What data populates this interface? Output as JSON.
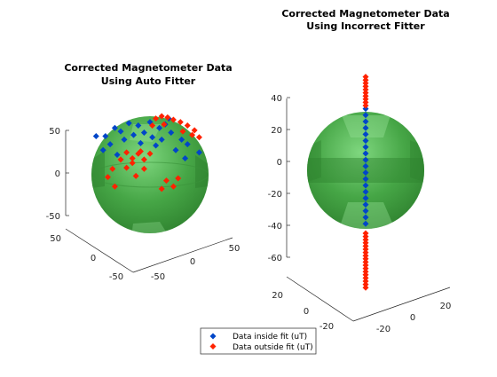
{
  "colors": {
    "sphere_light": "#6fd06f",
    "sphere_mid": "#3e9e3e",
    "sphere_dark": "#2a7a2a",
    "inside": "#0046c8",
    "outside": "#ff2200",
    "axis": "#262626"
  },
  "chart_data": [
    {
      "type": "scatter",
      "title": [
        "Corrected Magnetometer Data",
        "Using Auto Fitter"
      ],
      "z_ticks": [
        "50",
        "0",
        "-50"
      ],
      "x_ticks": [
        "50",
        "0",
        "-50"
      ],
      "y_ticks": [
        "50",
        "0",
        "-50"
      ],
      "sphere_radius": 50,
      "series": [
        {
          "name": "Data inside fit (uT)",
          "points": [
            [
              -30,
              40
            ],
            [
              -25,
              37
            ],
            [
              -38,
              33
            ],
            [
              -18,
              44
            ],
            [
              -10,
              42
            ],
            [
              -5,
              36
            ],
            [
              -22,
              30
            ],
            [
              0,
              45
            ],
            [
              -14,
              34
            ],
            [
              8,
              40
            ],
            [
              13,
              43
            ],
            [
              18,
              36
            ],
            [
              -34,
              26
            ],
            [
              -40,
              21
            ],
            [
              27,
              30
            ],
            [
              32,
              26
            ],
            [
              -28,
              17
            ],
            [
              5,
              25
            ],
            [
              22,
              21
            ],
            [
              42,
              19
            ],
            [
              16,
              48
            ],
            [
              -8,
              27
            ],
            [
              2,
              32
            ],
            [
              30,
              14
            ],
            [
              -46,
              33
            ],
            [
              10,
              30
            ]
          ]
        },
        {
          "name": "Data outside fit (uT)",
          "points": [
            [
              5,
              48
            ],
            [
              10,
              50
            ],
            [
              15,
              49
            ],
            [
              20,
              47
            ],
            [
              26,
              45
            ],
            [
              32,
              42
            ],
            [
              38,
              38
            ],
            [
              42,
              32
            ],
            [
              2,
              42
            ],
            [
              12,
              43
            ],
            [
              28,
              37
            ],
            [
              36,
              34
            ],
            [
              -5,
              13
            ],
            [
              -10,
              18
            ],
            [
              -15,
              14
            ],
            [
              -20,
              19
            ],
            [
              -25,
              13
            ],
            [
              -32,
              5
            ],
            [
              -36,
              -2
            ],
            [
              -30,
              -10
            ],
            [
              -20,
              6
            ],
            [
              -15,
              10
            ],
            [
              -12,
              -1
            ],
            [
              -5,
              5
            ],
            [
              -8,
              20
            ],
            [
              0,
              18
            ],
            [
              14,
              -5
            ],
            [
              20,
              -10
            ],
            [
              10,
              -12
            ],
            [
              24,
              -3
            ]
          ]
        }
      ]
    },
    {
      "type": "scatter",
      "title": [
        "Corrected Magnetometer Data",
        "Using Incorrect Fitter"
      ],
      "z_ticks": [
        "40",
        "20",
        "0",
        "-20",
        "-40",
        "-60"
      ],
      "x_ticks": [
        "20",
        "0",
        "-20"
      ],
      "y_ticks": [
        "20",
        "0",
        "-20"
      ],
      "sphere_radius": 41,
      "series": [
        {
          "name": "Data inside fit (uT)",
          "points": [
            [
              0,
              33
            ],
            [
              0,
              29
            ],
            [
              0,
              25
            ],
            [
              0,
              21
            ],
            [
              0,
              17
            ],
            [
              0,
              13
            ],
            [
              0,
              9
            ],
            [
              0,
              5
            ],
            [
              0,
              1
            ],
            [
              0,
              -3
            ],
            [
              0,
              -7
            ],
            [
              0,
              -11
            ],
            [
              0,
              -15
            ],
            [
              0,
              -19
            ],
            [
              0,
              -23
            ],
            [
              0,
              -27
            ],
            [
              0,
              -31
            ],
            [
              0,
              -35
            ],
            [
              0,
              -39
            ]
          ]
        },
        {
          "name": "Data outside fit (uT)",
          "points": [
            [
              0,
              53
            ],
            [
              0,
              51
            ],
            [
              0,
              49
            ],
            [
              0,
              47
            ],
            [
              0,
              45
            ],
            [
              0,
              43
            ],
            [
              0,
              41
            ],
            [
              0,
              39
            ],
            [
              0,
              37
            ],
            [
              0,
              35
            ],
            [
              0,
              -45
            ],
            [
              0,
              -47
            ],
            [
              0,
              -49
            ],
            [
              0,
              -51
            ],
            [
              0,
              -53
            ],
            [
              0,
              -55
            ],
            [
              0,
              -57
            ],
            [
              0,
              -59
            ],
            [
              0,
              -61
            ],
            [
              0,
              -63
            ],
            [
              0,
              -65
            ],
            [
              0,
              -67
            ],
            [
              0,
              -69
            ],
            [
              0,
              -71
            ],
            [
              0,
              -73
            ],
            [
              0,
              -75
            ],
            [
              0,
              -77
            ],
            [
              0,
              -79
            ]
          ]
        }
      ]
    }
  ],
  "legend": {
    "inside_label": "Data inside fit (uT)",
    "outside_label": "Data outside fit (uT)"
  }
}
